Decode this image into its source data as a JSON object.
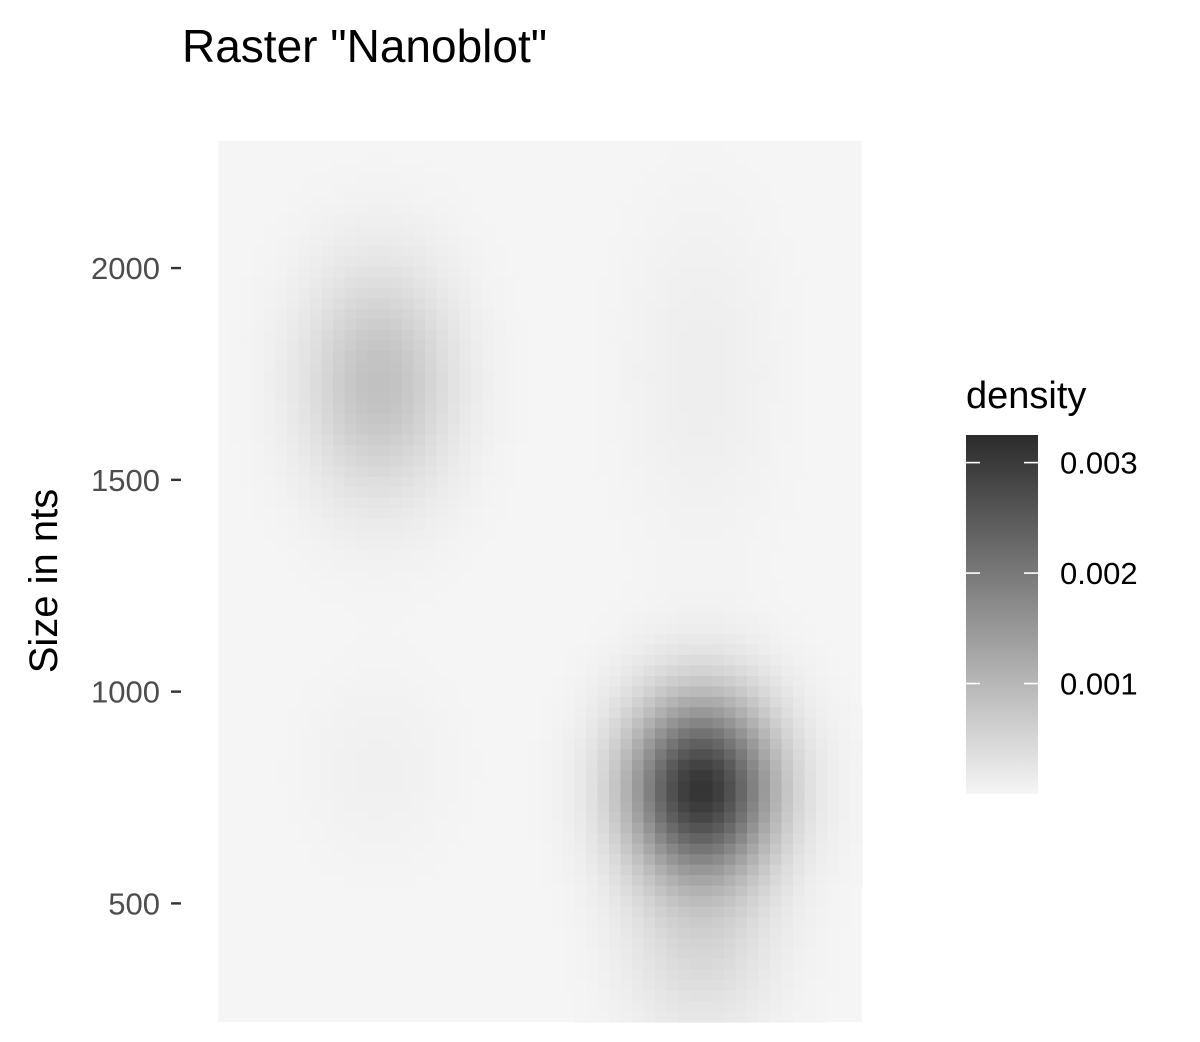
{
  "chart_data": {
    "type": "heatmap",
    "title": "Raster \"Nanoblot\"",
    "xlabel": "",
    "ylabel": "Size in nts",
    "x_lanes": 2,
    "ylim": [
      220,
      2300
    ],
    "y_ticks": [
      500,
      1000,
      1500,
      2000
    ],
    "y_tick_labels": [
      "500",
      "1000",
      "1500",
      "2000"
    ],
    "grid": false,
    "colors": {
      "low": "#f5f5f5",
      "high": "#2b2b2b"
    },
    "legend": {
      "title": "density",
      "placement": "right",
      "range": [
        0,
        0.00325
      ],
      "breaks": [
        0.001,
        0.002,
        0.003
      ],
      "break_labels": [
        "0.001",
        "0.002",
        "0.003"
      ]
    },
    "density_peaks": [
      {
        "lane": 1,
        "size_nts": 1730,
        "density": 0.00085,
        "sd_lane": 0.16,
        "sd_size": 185
      },
      {
        "lane": 1,
        "size_nts": 820,
        "density": 8e-05,
        "sd_lane": 0.16,
        "sd_size": 150
      },
      {
        "lane": 2,
        "size_nts": 770,
        "density": 0.0031,
        "sd_lane": 0.16,
        "sd_size": 150
      },
      {
        "lane": 2,
        "size_nts": 380,
        "density": 0.0004,
        "sd_lane": 0.16,
        "sd_size": 140
      },
      {
        "lane": 2,
        "size_nts": 1750,
        "density": 0.00012,
        "sd_lane": 0.16,
        "sd_size": 260
      }
    ]
  }
}
